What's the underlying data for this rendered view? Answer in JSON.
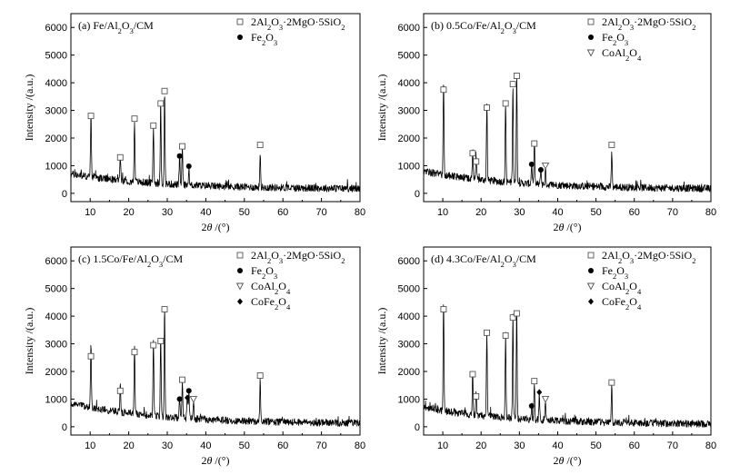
{
  "chart_data": [
    {
      "type": "line",
      "title": "(a) Fe/Al₂O₃/CM",
      "xlabel": "2θ /(°)",
      "ylabel": "Intensity /(a.u.)",
      "xlim": [
        5,
        80
      ],
      "ylim": [
        -300,
        6500
      ],
      "xticks": [
        10,
        20,
        30,
        40,
        50,
        60,
        70,
        80
      ],
      "yticks": [
        0,
        1000,
        2000,
        3000,
        4000,
        5000,
        6000
      ],
      "grid": false,
      "legend_position": "top-right",
      "legend": [
        {
          "marker": "open-square",
          "label": "2Al₂O₃·2MgO·5SiO₂"
        },
        {
          "marker": "filled-circle",
          "label": "Fe₂O₃"
        }
      ],
      "baseline": {
        "start": 700,
        "end": 150
      },
      "peaks": [
        {
          "x": 10.2,
          "y": 2450,
          "marker": "open-square",
          "marker_y": 2800
        },
        {
          "x": 17.8,
          "y": 1150,
          "marker": "open-square",
          "marker_y": 1300
        },
        {
          "x": 21.5,
          "y": 2400,
          "marker": "open-square",
          "marker_y": 2700
        },
        {
          "x": 26.4,
          "y": 2200,
          "marker": "open-square",
          "marker_y": 2450
        },
        {
          "x": 28.3,
          "y": 2950,
          "marker": "open-square",
          "marker_y": 3250
        },
        {
          "x": 29.3,
          "y": 3450,
          "marker": "open-square",
          "marker_y": 3700
        },
        {
          "x": 33.2,
          "y": 1150,
          "marker": "filled-circle",
          "marker_y": 1350
        },
        {
          "x": 33.9,
          "y": 1450,
          "marker": "open-square",
          "marker_y": 1700
        },
        {
          "x": 35.6,
          "y": 800,
          "marker": "filled-circle",
          "marker_y": 980
        },
        {
          "x": 54.1,
          "y": 1400,
          "marker": "open-square",
          "marker_y": 1750
        }
      ]
    },
    {
      "type": "line",
      "title": "(b) 0.5Co/Fe/Al₂O₃/CM",
      "xlabel": "2θ /(°)",
      "ylabel": "Intensity /(a.u.)",
      "xlim": [
        5,
        80
      ],
      "ylim": [
        -300,
        6500
      ],
      "xticks": [
        10,
        20,
        30,
        40,
        50,
        60,
        70,
        80
      ],
      "yticks": [
        0,
        1000,
        2000,
        3000,
        4000,
        5000,
        6000
      ],
      "grid": false,
      "legend_position": "top-right",
      "legend": [
        {
          "marker": "open-square",
          "label": "2Al₂O₃·2MgO·5SiO₂"
        },
        {
          "marker": "filled-circle",
          "label": "Fe₂O₃"
        },
        {
          "marker": "open-triangle-down",
          "label": "CoAl₂O₄"
        }
      ],
      "baseline": {
        "start": 800,
        "end": 150
      },
      "peaks": [
        {
          "x": 10.2,
          "y": 3550,
          "marker": "open-square",
          "marker_y": 3750
        },
        {
          "x": 17.8,
          "y": 1250,
          "marker": "open-square",
          "marker_y": 1450
        },
        {
          "x": 18.7,
          "y": 950,
          "marker": "open-square",
          "marker_y": 1150
        },
        {
          "x": 21.5,
          "y": 2900,
          "marker": "open-square",
          "marker_y": 3100
        },
        {
          "x": 26.4,
          "y": 3050,
          "marker": "open-square",
          "marker_y": 3250
        },
        {
          "x": 28.3,
          "y": 3750,
          "marker": "open-square",
          "marker_y": 3950
        },
        {
          "x": 29.3,
          "y": 4100,
          "marker": "open-square",
          "marker_y": 4250
        },
        {
          "x": 33.2,
          "y": 900,
          "marker": "filled-circle",
          "marker_y": 1050
        },
        {
          "x": 33.9,
          "y": 1600,
          "marker": "open-square",
          "marker_y": 1800
        },
        {
          "x": 35.6,
          "y": 750,
          "marker": "filled-circle",
          "marker_y": 850
        },
        {
          "x": 36.8,
          "y": 700,
          "marker": "open-triangle-down",
          "marker_y": 1000
        },
        {
          "x": 54.1,
          "y": 1450,
          "marker": "open-square",
          "marker_y": 1750
        }
      ]
    },
    {
      "type": "line",
      "title": "(c) 1.5Co/Fe/Al₂O₃/CM",
      "xlabel": "2θ /(°)",
      "ylabel": "Intensity /(a.u.)",
      "xlim": [
        5,
        80
      ],
      "ylim": [
        -300,
        6500
      ],
      "xticks": [
        10,
        20,
        30,
        40,
        50,
        60,
        70,
        80
      ],
      "yticks": [
        0,
        1000,
        2000,
        3000,
        4000,
        5000,
        6000
      ],
      "grid": false,
      "legend_position": "top-right",
      "legend": [
        {
          "marker": "open-square",
          "label": "2Al₂O₃·2MgO·5SiO₂"
        },
        {
          "marker": "filled-circle",
          "label": "Fe₂O₃"
        },
        {
          "marker": "open-triangle-down",
          "label": "CoAl₂O₄"
        },
        {
          "marker": "filled-diamond",
          "label": "CoFe₂O₄"
        }
      ],
      "baseline": {
        "start": 850,
        "end": 100
      },
      "peaks": [
        {
          "x": 10.2,
          "y": 2400,
          "marker": "open-square",
          "marker_y": 2550
        },
        {
          "x": 17.8,
          "y": 1100,
          "marker": "open-square",
          "marker_y": 1300
        },
        {
          "x": 21.5,
          "y": 2550,
          "marker": "open-square",
          "marker_y": 2700
        },
        {
          "x": 26.4,
          "y": 2800,
          "marker": "open-square",
          "marker_y": 2950
        },
        {
          "x": 28.3,
          "y": 2950,
          "marker": "open-square",
          "marker_y": 3100
        },
        {
          "x": 29.3,
          "y": 4100,
          "marker": "open-square",
          "marker_y": 4250
        },
        {
          "x": 33.2,
          "y": 850,
          "marker": "filled-circle",
          "marker_y": 1000
        },
        {
          "x": 33.9,
          "y": 1500,
          "marker": "open-square",
          "marker_y": 1700
        },
        {
          "x": 35.2,
          "y": 900,
          "marker": "filled-diamond",
          "marker_y": 1050
        },
        {
          "x": 35.6,
          "y": 1100,
          "marker": "filled-circle",
          "marker_y": 1300
        },
        {
          "x": 36.8,
          "y": 750,
          "marker": "open-triangle-down",
          "marker_y": 1000
        },
        {
          "x": 54.1,
          "y": 1600,
          "marker": "open-square",
          "marker_y": 1850
        }
      ]
    },
    {
      "type": "line",
      "title": "(d) 4.3Co/Fe/Al₂O₃/CM",
      "xlabel": "2θ /(°)",
      "ylabel": "Intensity /(a.u.)",
      "xlim": [
        5,
        80
      ],
      "ylim": [
        -300,
        6500
      ],
      "xticks": [
        10,
        20,
        30,
        40,
        50,
        60,
        70,
        80
      ],
      "yticks": [
        0,
        1000,
        2000,
        3000,
        4000,
        5000,
        6000
      ],
      "grid": false,
      "legend_position": "top-right",
      "legend": [
        {
          "marker": "open-square",
          "label": "2Al₂O₃·2MgO·5SiO₂"
        },
        {
          "marker": "filled-circle",
          "label": "Fe₂O₃"
        },
        {
          "marker": "open-triangle-down",
          "label": "CoAl₂O₄"
        },
        {
          "marker": "filled-diamond",
          "label": "CoFe₂O₄"
        }
      ],
      "baseline": {
        "start": 700,
        "end": 80
      },
      "peaks": [
        {
          "x": 10.2,
          "y": 4050,
          "marker": "open-square",
          "marker_y": 4250
        },
        {
          "x": 17.8,
          "y": 1650,
          "marker": "open-square",
          "marker_y": 1900
        },
        {
          "x": 18.7,
          "y": 900,
          "marker": "open-square",
          "marker_y": 1100
        },
        {
          "x": 21.5,
          "y": 3200,
          "marker": "open-square",
          "marker_y": 3400
        },
        {
          "x": 26.4,
          "y": 3150,
          "marker": "open-square",
          "marker_y": 3300
        },
        {
          "x": 28.3,
          "y": 3750,
          "marker": "open-square",
          "marker_y": 3950
        },
        {
          "x": 29.3,
          "y": 3950,
          "marker": "open-square",
          "marker_y": 4100
        },
        {
          "x": 33.2,
          "y": 600,
          "marker": "filled-circle",
          "marker_y": 750
        },
        {
          "x": 33.9,
          "y": 1450,
          "marker": "open-square",
          "marker_y": 1650
        },
        {
          "x": 35.2,
          "y": 1050,
          "marker": "filled-diamond",
          "marker_y": 1250
        },
        {
          "x": 36.8,
          "y": 750,
          "marker": "open-triangle-down",
          "marker_y": 1000
        },
        {
          "x": 54.1,
          "y": 1350,
          "marker": "open-square",
          "marker_y": 1600
        }
      ]
    }
  ]
}
